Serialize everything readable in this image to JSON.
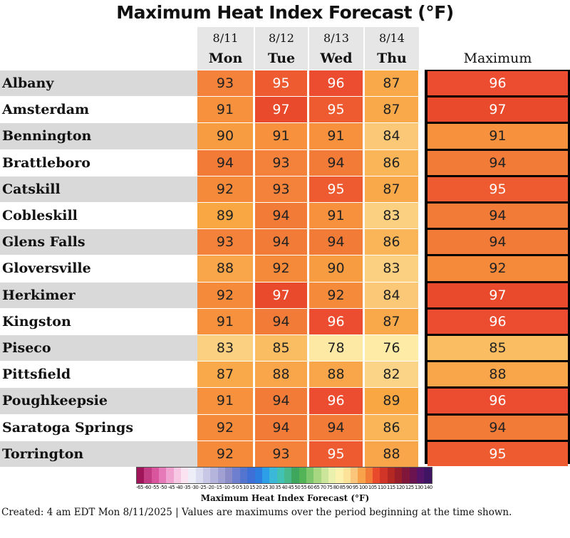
{
  "title": "Maximum Heat Index Forecast (°F)",
  "max_label": "Maximum",
  "legend_title": "Maximum Heat Index Forecast (°F)",
  "footnote": "Created: 4 am EDT Mon 8/11/2025  |  Values are maximums over the period beginning at the time shown.",
  "chart_data": {
    "type": "table",
    "columns": [
      {
        "date": "8/11",
        "day": "Mon"
      },
      {
        "date": "8/12",
        "day": "Tue"
      },
      {
        "date": "8/13",
        "day": "Wed"
      },
      {
        "date": "8/14",
        "day": "Thu"
      }
    ],
    "rows": [
      {
        "name": "Albany",
        "values": [
          93,
          95,
          96,
          87
        ],
        "max": 96
      },
      {
        "name": "Amsterdam",
        "values": [
          91,
          97,
          95,
          87
        ],
        "max": 97
      },
      {
        "name": "Bennington",
        "values": [
          90,
          91,
          91,
          84
        ],
        "max": 91
      },
      {
        "name": "Brattleboro",
        "values": [
          94,
          93,
          94,
          86
        ],
        "max": 94
      },
      {
        "name": "Catskill",
        "values": [
          92,
          93,
          95,
          87
        ],
        "max": 95
      },
      {
        "name": "Cobleskill",
        "values": [
          89,
          94,
          91,
          83
        ],
        "max": 94
      },
      {
        "name": "Glens Falls",
        "values": [
          93,
          94,
          94,
          86
        ],
        "max": 94
      },
      {
        "name": "Gloversville",
        "values": [
          88,
          92,
          90,
          83
        ],
        "max": 92
      },
      {
        "name": "Herkimer",
        "values": [
          92,
          97,
          92,
          84
        ],
        "max": 97
      },
      {
        "name": "Kingston",
        "values": [
          91,
          94,
          96,
          87
        ],
        "max": 96
      },
      {
        "name": "Piseco",
        "values": [
          83,
          85,
          78,
          76
        ],
        "max": 85
      },
      {
        "name": "Pittsfield",
        "values": [
          87,
          88,
          88,
          82
        ],
        "max": 88
      },
      {
        "name": "Poughkeepsie",
        "values": [
          91,
          94,
          96,
          89
        ],
        "max": 96
      },
      {
        "name": "Saratoga Springs",
        "values": [
          92,
          94,
          94,
          86
        ],
        "max": 94
      },
      {
        "name": "Torrington",
        "values": [
          92,
          93,
          95,
          88
        ],
        "max": 95
      }
    ],
    "color_scale": {
      "76": "#fdeba6",
      "78": "#fde9a4",
      "82": "#fcd487",
      "83": "#fcd081",
      "84": "#fbc878",
      "85": "#fbbd62",
      "86": "#fab559",
      "87": "#f9a949",
      "88": "#f9a549",
      "89": "#f8a742",
      "90": "#f79c40",
      "91": "#f7913d",
      "92": "#f58a3b",
      "93": "#f4823a",
      "94": "#f27b38",
      "95": "#ef5b31",
      "96": "#ec4c2f",
      "97": "#e94a2c"
    },
    "legend": {
      "tick_labels": [
        "-65",
        "-60",
        "-55",
        "-50",
        "-45",
        "-40",
        "-35",
        "-30",
        "-25",
        "-20",
        "-15",
        "-10",
        "-5",
        "0",
        "5",
        "10",
        "15",
        "20",
        "25",
        "30",
        "35",
        "40",
        "45",
        "50",
        "55",
        "60",
        "65",
        "70",
        "75",
        "80",
        "85",
        "90",
        "95",
        "100",
        "105",
        "110",
        "115",
        "120",
        "125",
        "130",
        "140"
      ],
      "colors": [
        "#a0145a",
        "#c23b83",
        "#d9559e",
        "#e67ab8",
        "#f0a2d0",
        "#f7c8e4",
        "#fbe3f1",
        "#eeeef8",
        "#dcdcf0",
        "#c8c8e6",
        "#b4b4dc",
        "#a0a0d2",
        "#8c8cc8",
        "#6f7fcf",
        "#5475cf",
        "#3e6fd6",
        "#2c7ddf",
        "#2c9fe8",
        "#3bb7d8",
        "#41c2b4",
        "#47b98a",
        "#3fa65e",
        "#52b457",
        "#7ec66b",
        "#a8d781",
        "#cbe59a",
        "#e9f1ad",
        "#fdf1ae",
        "#fde29a",
        "#fcc57c",
        "#f8a34c",
        "#f27b38",
        "#e94a2c",
        "#d03527",
        "#b42824",
        "#9a1d2a",
        "#80173a",
        "#6a1350",
        "#561468",
        "#3f1463"
      ]
    }
  }
}
